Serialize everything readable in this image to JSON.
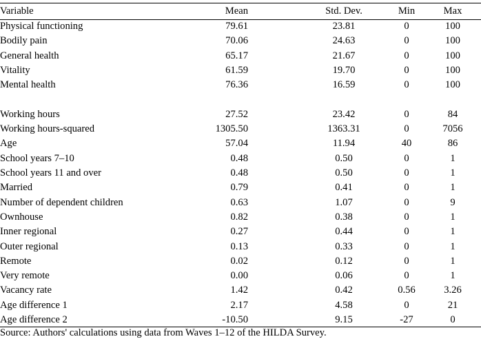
{
  "table": {
    "headers": {
      "variable": "Variable",
      "mean": "Mean",
      "sd": "Std. Dev.",
      "min": "Min",
      "max": "Max"
    },
    "rows": [
      {
        "variable": "Physical functioning",
        "mean": "79.61",
        "sd": "23.81",
        "min": "0",
        "max": "100"
      },
      {
        "variable": "Bodily pain",
        "mean": "70.06",
        "sd": "24.63",
        "min": "0",
        "max": "100"
      },
      {
        "variable": "General health",
        "mean": "65.17",
        "sd": "21.67",
        "min": "0",
        "max": "100"
      },
      {
        "variable": "Vitality",
        "mean": "61.59",
        "sd": "19.70",
        "min": "0",
        "max": "100"
      },
      {
        "variable": "Mental health",
        "mean": "76.36",
        "sd": "16.59",
        "min": "0",
        "max": "100"
      },
      {
        "variable": "Working hours",
        "mean": "27.52",
        "sd": "23.42",
        "min": "0",
        "max": "84"
      },
      {
        "variable": "Working hours-squared",
        "mean": "1305.50",
        "sd": "1363.31",
        "min": "0",
        "max": "7056"
      },
      {
        "variable": "Age",
        "mean": "57.04",
        "sd": "11.94",
        "min": "40",
        "max": "86"
      },
      {
        "variable": "School years 7–10",
        "mean": "0.48",
        "sd": "0.50",
        "min": "0",
        "max": "1"
      },
      {
        "variable": "School years 11 and over",
        "mean": "0.48",
        "sd": "0.50",
        "min": "0",
        "max": "1"
      },
      {
        "variable": "Married",
        "mean": "0.79",
        "sd": "0.41",
        "min": "0",
        "max": "1"
      },
      {
        "variable": "Number of dependent children",
        "mean": "0.63",
        "sd": "1.07",
        "min": "0",
        "max": "9"
      },
      {
        "variable": "Ownhouse",
        "mean": "0.82",
        "sd": "0.38",
        "min": "0",
        "max": "1"
      },
      {
        "variable": "Inner regional",
        "mean": "0.27",
        "sd": "0.44",
        "min": "0",
        "max": "1"
      },
      {
        "variable": "Outer regional",
        "mean": "0.13",
        "sd": "0.33",
        "min": "0",
        "max": "1"
      },
      {
        "variable": "Remote",
        "mean": "0.02",
        "sd": "0.12",
        "min": "0",
        "max": "1"
      },
      {
        "variable": "Very remote",
        "mean": "0.00",
        "sd": "0.06",
        "min": "0",
        "max": "1"
      },
      {
        "variable": "Vacancy rate",
        "mean": "1.42",
        "sd": "0.42",
        "min": "0.56",
        "max": "3.26"
      },
      {
        "variable": "Age difference 1",
        "mean": "2.17",
        "sd": "4.58",
        "min": "0",
        "max": "21"
      },
      {
        "variable": "Age difference 2",
        "mean": "-10.50",
        "sd": "9.15",
        "min": "-27",
        "max": "0"
      }
    ]
  },
  "source": "Source: Authors' calculations using data from Waves 1–12 of the HILDA Survey."
}
